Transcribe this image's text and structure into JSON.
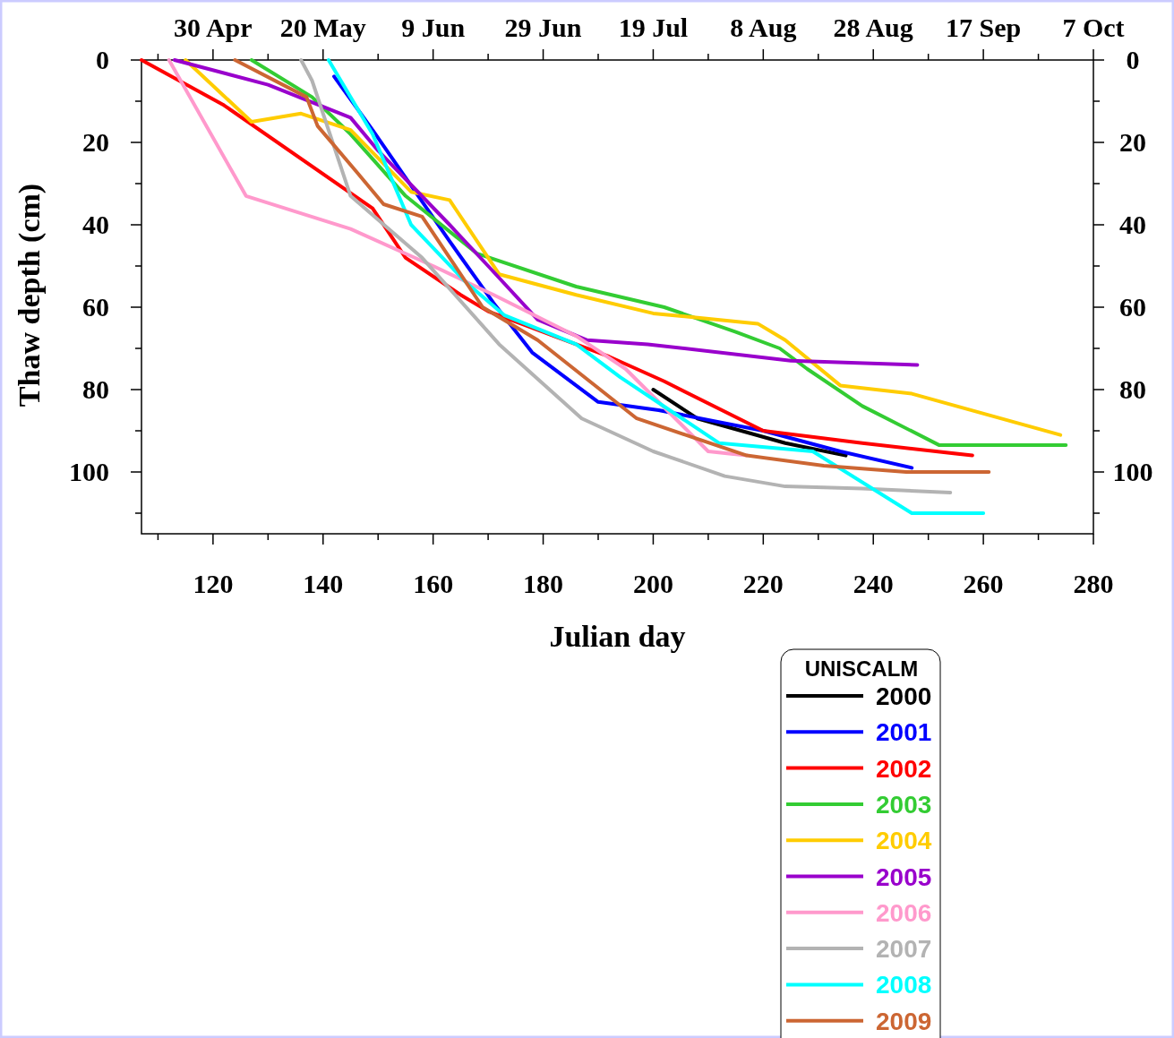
{
  "chart_data": {
    "type": "line",
    "xlabel": "Julian day",
    "ylabel": "Thaw depth (cm)",
    "legend_title": "UNISCALM",
    "legend": "bottom right",
    "xlim": [
      107,
      280
    ],
    "xticks": [
      {
        "value": 110,
        "label": null
      },
      120,
      {
        "value": 130,
        "label": null
      },
      140,
      {
        "value": 150,
        "label": null
      },
      160,
      {
        "value": 170,
        "label": null
      },
      180,
      {
        "value": 190,
        "label": null
      },
      200,
      {
        "value": 210,
        "label": null
      },
      220,
      {
        "value": 230,
        "label": null
      },
      240,
      {
        "value": 250,
        "label": null
      },
      260,
      {
        "value": 270,
        "label": null
      },
      280
    ],
    "x2lim": [
      "--04-17",
      "--10-07"
    ],
    "x2ticks": [
      {
        "value": "--04-20",
        "label": null
      },
      {
        "value": "--04-30",
        "label": "30 Apr"
      },
      {
        "value": "--05-10",
        "label": null
      },
      {
        "value": "--05-20",
        "label": "20 May"
      },
      {
        "value": "--05-30",
        "label": null
      },
      {
        "value": "--06-09",
        "label": "9 Jun"
      },
      {
        "value": "--06-19",
        "label": null
      },
      {
        "value": "--06-29",
        "label": "29 Jun"
      },
      {
        "value": "--07-09",
        "label": null
      },
      {
        "value": "--07-19",
        "label": "19 Jul"
      },
      {
        "value": "--07-29",
        "label": null
      },
      {
        "value": "--08-08",
        "label": "8 Aug"
      },
      {
        "value": "--08-18",
        "label": null
      },
      {
        "value": "--08-28",
        "label": "28 Aug"
      },
      {
        "value": "--09-07",
        "label": null
      },
      {
        "value": "--09-17",
        "label": "17 Sep"
      },
      {
        "value": "--09-27",
        "label": null
      },
      {
        "value": "--10-07",
        "label": "7 Oct"
      }
    ],
    "ylim": [
      115,
      0
    ],
    "yticks": [
      0,
      {
        "value": 10,
        "label": null
      },
      20,
      {
        "value": 30,
        "label": null
      },
      40,
      {
        "value": 50,
        "label": null
      },
      60,
      {
        "value": 70,
        "label": null
      },
      80,
      {
        "value": 90,
        "label": null
      },
      100,
      {
        "value": 110,
        "label": null
      }
    ],
    "y2lim": [
      115,
      0
    ],
    "y2ticks": [
      0,
      {
        "value": 10,
        "label": null
      },
      20,
      {
        "value": 30,
        "label": null
      },
      40,
      {
        "value": 50,
        "label": null
      },
      60,
      {
        "value": 70,
        "label": null
      },
      80,
      {
        "value": 90,
        "label": null
      },
      100,
      {
        "value": 110,
        "label": null
      }
    ],
    "series": [
      {
        "name": "2000",
        "color": "#000000",
        "x": [
          200,
          208,
          224,
          235
        ],
        "values": [
          80,
          87,
          93,
          96
        ]
      },
      {
        "name": "2001",
        "color": "#0000ff",
        "x": [
          142,
          149,
          163,
          171,
          178,
          190,
          201,
          220,
          234,
          247
        ],
        "values": [
          4,
          17,
          44,
          59,
          71,
          83,
          85,
          90,
          95,
          99
        ]
      },
      {
        "name": "2002",
        "color": "#ff0000",
        "x": [
          107,
          122,
          149,
          155,
          165,
          170,
          184,
          192,
          202,
          220,
          238,
          258
        ],
        "values": [
          0,
          11,
          36,
          48,
          57,
          61,
          68,
          72,
          78,
          90,
          93,
          96
        ]
      },
      {
        "name": "2003",
        "color": "#33cc33",
        "x": [
          127,
          138,
          145,
          155,
          168,
          186,
          202,
          215,
          223,
          228,
          238,
          252,
          275
        ],
        "values": [
          0,
          9,
          18,
          33,
          47,
          55,
          60,
          66,
          70,
          75,
          84,
          93.5,
          93.5
        ]
      },
      {
        "name": "2004",
        "color": "#ffcc00",
        "x": [
          115,
          127,
          136,
          145,
          156,
          163,
          172,
          186,
          200,
          219,
          224,
          234,
          247,
          274
        ],
        "values": [
          0,
          15,
          13,
          17,
          32,
          34,
          52,
          57,
          61.5,
          64,
          68,
          79,
          81,
          91
        ]
      },
      {
        "name": "2005",
        "color": "#9900cc",
        "x": [
          113,
          130,
          145,
          150,
          163,
          170,
          179,
          188,
          199,
          225,
          248
        ],
        "values": [
          0,
          6,
          14,
          22,
          40,
          50,
          63,
          68,
          69,
          73,
          74
        ]
      },
      {
        "name": "2006",
        "color": "#ff99cc",
        "x": [
          112,
          126,
          145,
          160,
          171,
          186,
          195,
          210,
          217
        ],
        "values": [
          0,
          33,
          41,
          50,
          57,
          67,
          75,
          95,
          96
        ]
      },
      {
        "name": "2007",
        "color": "#b3b3b3",
        "x": [
          136,
          138,
          145,
          158,
          172,
          187,
          200,
          213,
          224,
          238,
          254
        ],
        "values": [
          0,
          5,
          33,
          48,
          69,
          87,
          95,
          101,
          103.5,
          104,
          105
        ]
      },
      {
        "name": "2008",
        "color": "#00ffff",
        "x": [
          141,
          149,
          156,
          166,
          173,
          186,
          194,
          212,
          229,
          247,
          260
        ],
        "values": [
          0,
          18,
          40,
          54,
          62,
          69,
          77,
          93,
          95,
          110,
          110
        ]
      },
      {
        "name": "2009",
        "color": "#cc6633",
        "x": [
          124,
          137,
          139,
          146,
          151,
          158,
          169,
          179,
          197,
          217,
          231,
          246,
          261
        ],
        "values": [
          0,
          9,
          16,
          27,
          35,
          38,
          60,
          68,
          87,
          96,
          98.5,
          100,
          100
        ]
      }
    ]
  }
}
